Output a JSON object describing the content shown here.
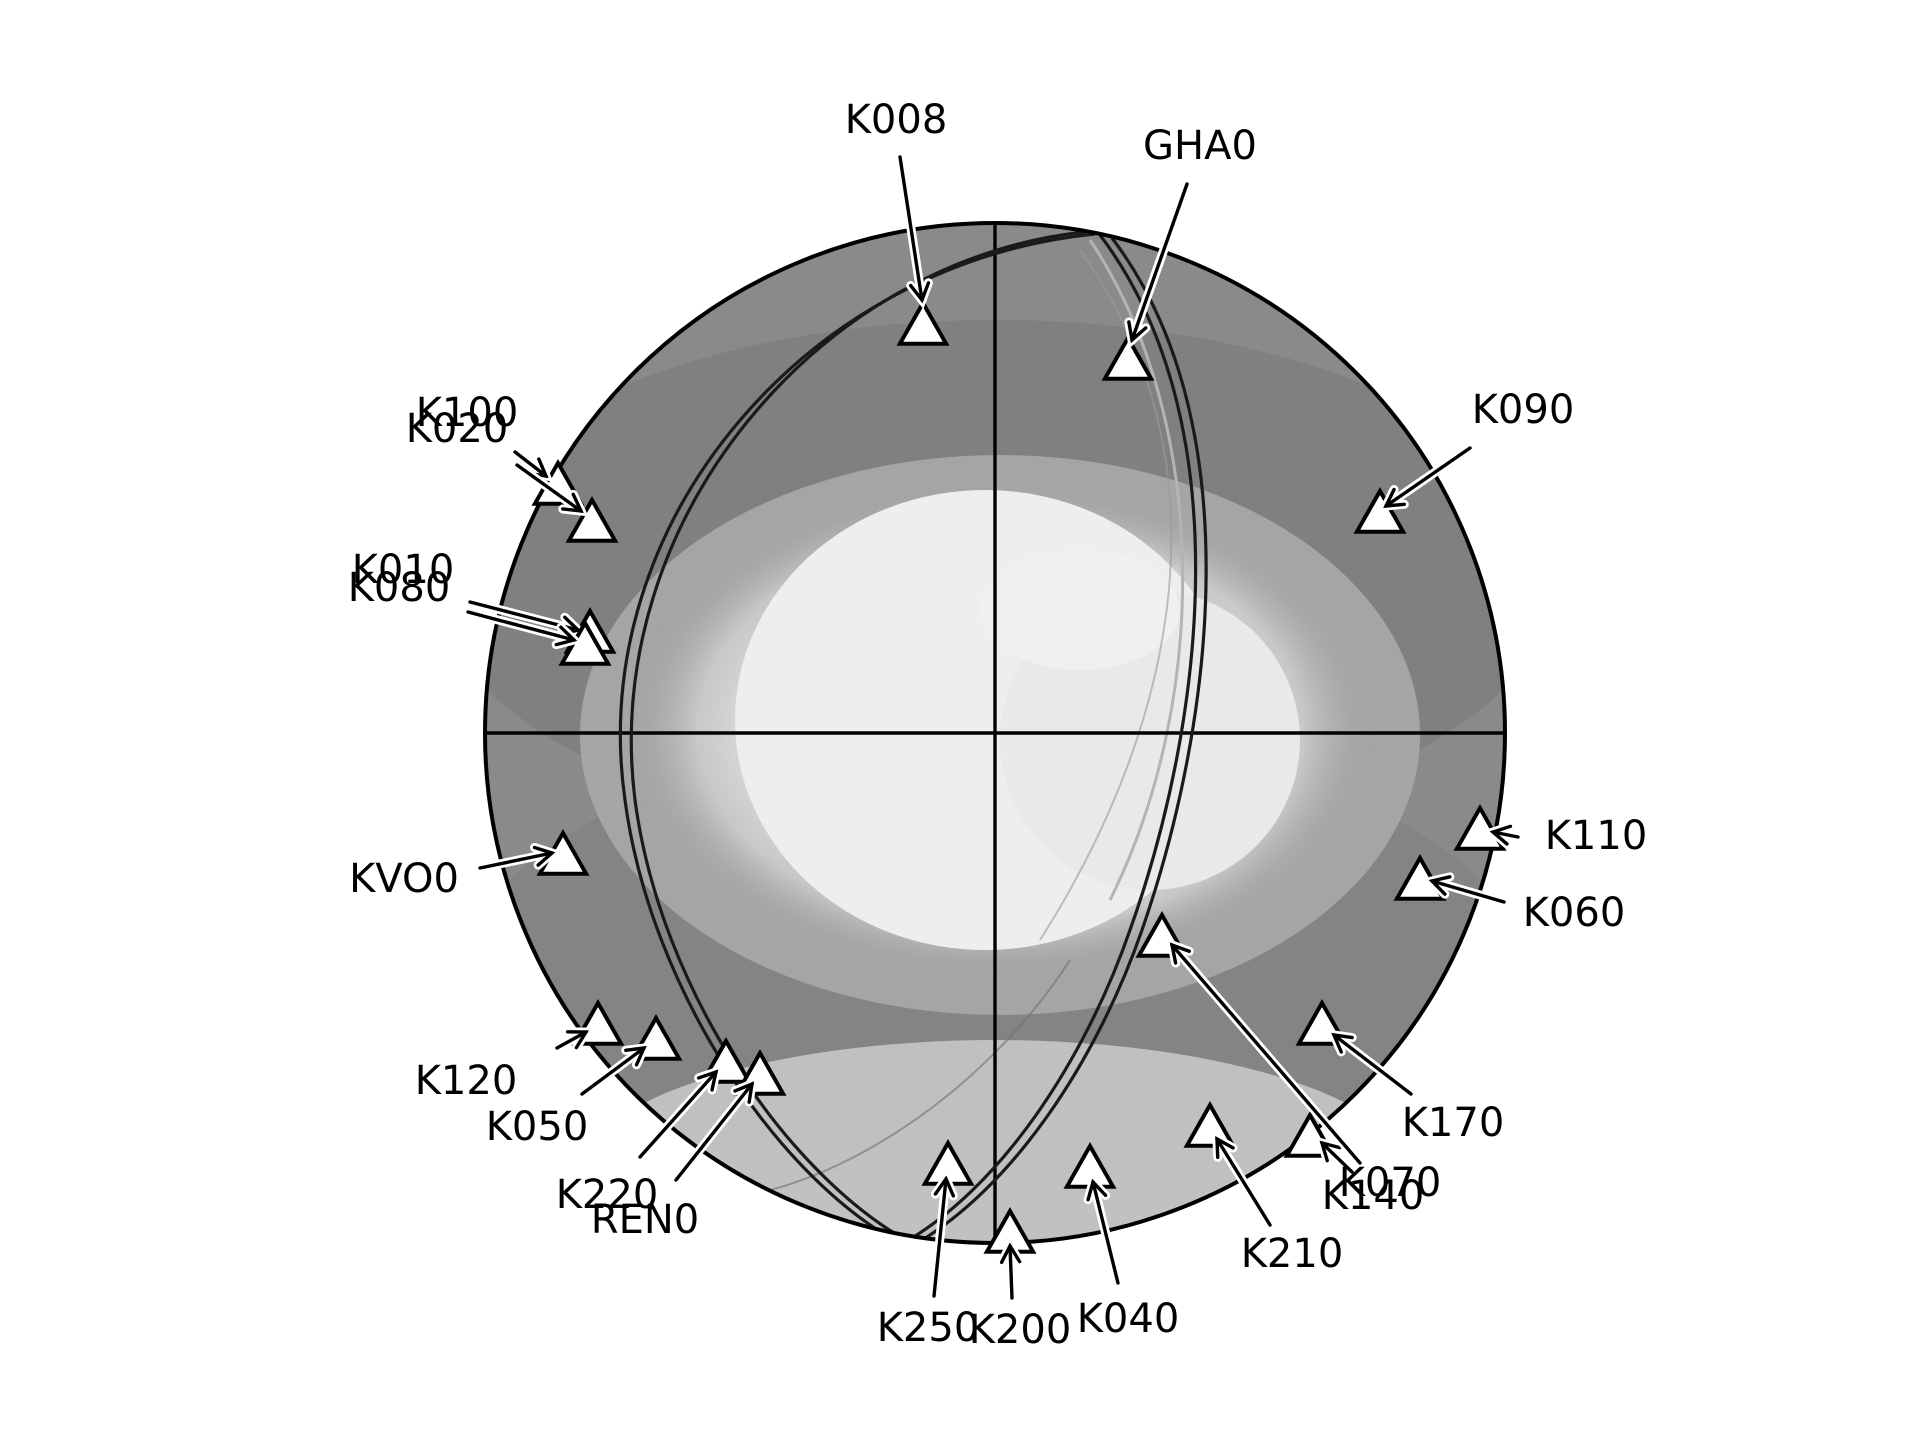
{
  "diagram": {
    "type": "focal-mechanism beachball (lower-hemisphere projection) with station markers",
    "colors": {
      "background": "#ffffff",
      "outline": "#000000",
      "shading_dark": "#7a7a7a",
      "shading_light": "#efefef",
      "station_fill": "#ffffff"
    },
    "station_marker": "triangle",
    "stations": [
      {
        "id": "k008",
        "label": "K008"
      },
      {
        "id": "gha0",
        "label": "GHA0"
      },
      {
        "id": "k090",
        "label": "K090"
      },
      {
        "id": "k100",
        "label": "K100"
      },
      {
        "id": "k020",
        "label": "K020"
      },
      {
        "id": "k010",
        "label": "K010"
      },
      {
        "id": "k080",
        "label": "K080"
      },
      {
        "id": "kvo0",
        "label": "KVO0"
      },
      {
        "id": "k110",
        "label": "K110"
      },
      {
        "id": "k060",
        "label": "K060"
      },
      {
        "id": "k120",
        "label": "K120"
      },
      {
        "id": "k050",
        "label": "K050"
      },
      {
        "id": "k220",
        "label": "K220"
      },
      {
        "id": "ren0",
        "label": "REN0"
      },
      {
        "id": "k250",
        "label": "K250"
      },
      {
        "id": "k200",
        "label": "K200"
      },
      {
        "id": "k040",
        "label": "K040"
      },
      {
        "id": "k210",
        "label": "K210"
      },
      {
        "id": "k140",
        "label": "K140"
      },
      {
        "id": "k070",
        "label": "K070"
      },
      {
        "id": "k170",
        "label": "K170"
      }
    ]
  }
}
